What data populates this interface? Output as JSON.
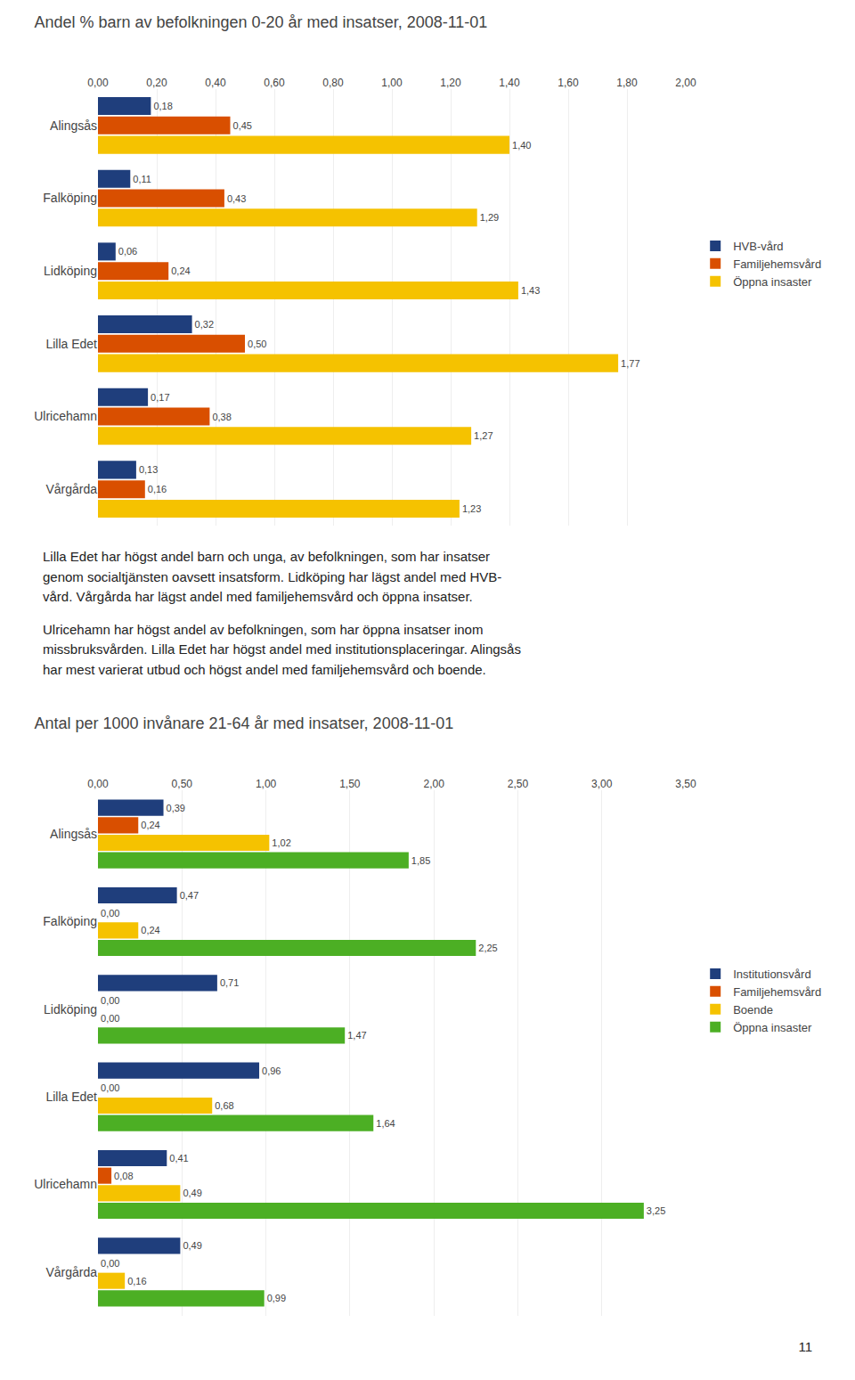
{
  "chart_data": [
    {
      "type": "bar",
      "orientation": "horizontal",
      "data_labels": true,
      "grid": true,
      "legend": "right",
      "title": "Andel % barn av befolkningen 0-20 år med insatser, 2008-11-01",
      "categories": [
        "Vårgårda",
        "Ulricehamn",
        "Lilla Edet",
        "Lidköping",
        "Falköping",
        "Alingsås"
      ],
      "series": [
        {
          "name": "HVB-vård",
          "color": "#1f3e7c",
          "values": [
            0.13,
            0.17,
            0.32,
            0.06,
            0.11,
            0.18
          ],
          "value_labels": [
            "0,13",
            "0,17",
            "0,32",
            "0,06",
            "0,11",
            "0,18"
          ]
        },
        {
          "name": "Familjehemsvård",
          "color": "#d94f00",
          "values": [
            0.16,
            0.38,
            0.5,
            0.24,
            0.43,
            0.45
          ],
          "value_labels": [
            "0,16",
            "0,38",
            "0,50",
            "0,24",
            "0,43",
            "0,45"
          ]
        },
        {
          "name": "Öppna insaster",
          "color": "#f5c200",
          "values": [
            1.23,
            1.27,
            1.77,
            1.43,
            1.29,
            1.4
          ],
          "value_labels": [
            "1,23",
            "1,27",
            "1,77",
            "1,43",
            "1,29",
            "1,40"
          ]
        }
      ],
      "xlim": [
        0,
        2.0
      ],
      "xticks": [
        {
          "value": 0.0,
          "label": "0,00"
        },
        {
          "value": 0.2,
          "label": "0,20"
        },
        {
          "value": 0.4,
          "label": "0,40"
        },
        {
          "value": 0.6,
          "label": "0,60"
        },
        {
          "value": 0.8,
          "label": "0,80"
        },
        {
          "value": 1.0,
          "label": "1,00"
        },
        {
          "value": 1.2,
          "label": "1,20"
        },
        {
          "value": 1.4,
          "label": "1,40"
        },
        {
          "value": 1.6,
          "label": "1,60"
        },
        {
          "value": 1.8,
          "label": "1,80"
        },
        {
          "value": 2.0,
          "label": "2,00"
        }
      ],
      "annotations": [
        "Lilla Edet har högst andel barn och unga, av befolkningen, som har insatser\ngenom socialtjänsten oavsett insatsform. Lidköping har lägst andel med HVB-\nvård. Vårgårda har lägst andel med familjehemsvård och öppna insatser.",
        "Ulricehamn har högst andel av befolkningen, som har öppna insatser inom\nmissbruksvården. Lilla Edet har högst andel med institutionsplaceringar. Alingsås\nhar mest varierat utbud och högst andel med familjehemsvård och boende."
      ]
    },
    {
      "type": "bar",
      "orientation": "horizontal",
      "data_labels": true,
      "grid": true,
      "legend": "right",
      "title": "Antal per 1000 invånare 21-64 år med insatser, 2008-11-01",
      "categories": [
        "Vårgårda",
        "Ulricehamn",
        "Lilla Edet",
        "Lidköping",
        "Falköping",
        "Alingsås"
      ],
      "series": [
        {
          "name": "Institutionsvård",
          "color": "#1f3e7c",
          "values": [
            0.49,
            0.41,
            0.96,
            0.71,
            0.47,
            0.39
          ],
          "value_labels": [
            "0,49",
            "0,41",
            "0,96",
            "0,71",
            "0,47",
            "0,39"
          ]
        },
        {
          "name": "Familjehemsvård",
          "color": "#d94f00",
          "values": [
            0.0,
            0.08,
            0.0,
            0.0,
            0.0,
            0.24
          ],
          "value_labels": [
            "0,00",
            "0,08",
            "0,00",
            "0,00",
            "0,00",
            "0,24"
          ]
        },
        {
          "name": "Boende",
          "color": "#f5c200",
          "values": [
            0.16,
            0.49,
            0.68,
            0.0,
            0.24,
            1.02
          ],
          "value_labels": [
            "0,16",
            "0,49",
            "0,68",
            "0,00",
            "0,24",
            "1,02"
          ]
        },
        {
          "name": "Öppna insaster",
          "color": "#4caf24",
          "values": [
            0.99,
            3.25,
            1.64,
            1.47,
            2.25,
            1.85
          ],
          "value_labels": [
            "0,99",
            "3,25",
            "1,64",
            "1,47",
            "2,25",
            "1,85"
          ]
        }
      ],
      "xlim": [
        0,
        3.5
      ],
      "xticks": [
        {
          "value": 0.0,
          "label": "0,00"
        },
        {
          "value": 0.5,
          "label": "0,50"
        },
        {
          "value": 1.0,
          "label": "1,00"
        },
        {
          "value": 1.5,
          "label": "1,50"
        },
        {
          "value": 2.0,
          "label": "2,00"
        },
        {
          "value": 2.5,
          "label": "2,50"
        },
        {
          "value": 3.0,
          "label": "3,00"
        },
        {
          "value": 3.5,
          "label": "3,50"
        }
      ],
      "annotations": [
        "11"
      ]
    }
  ]
}
